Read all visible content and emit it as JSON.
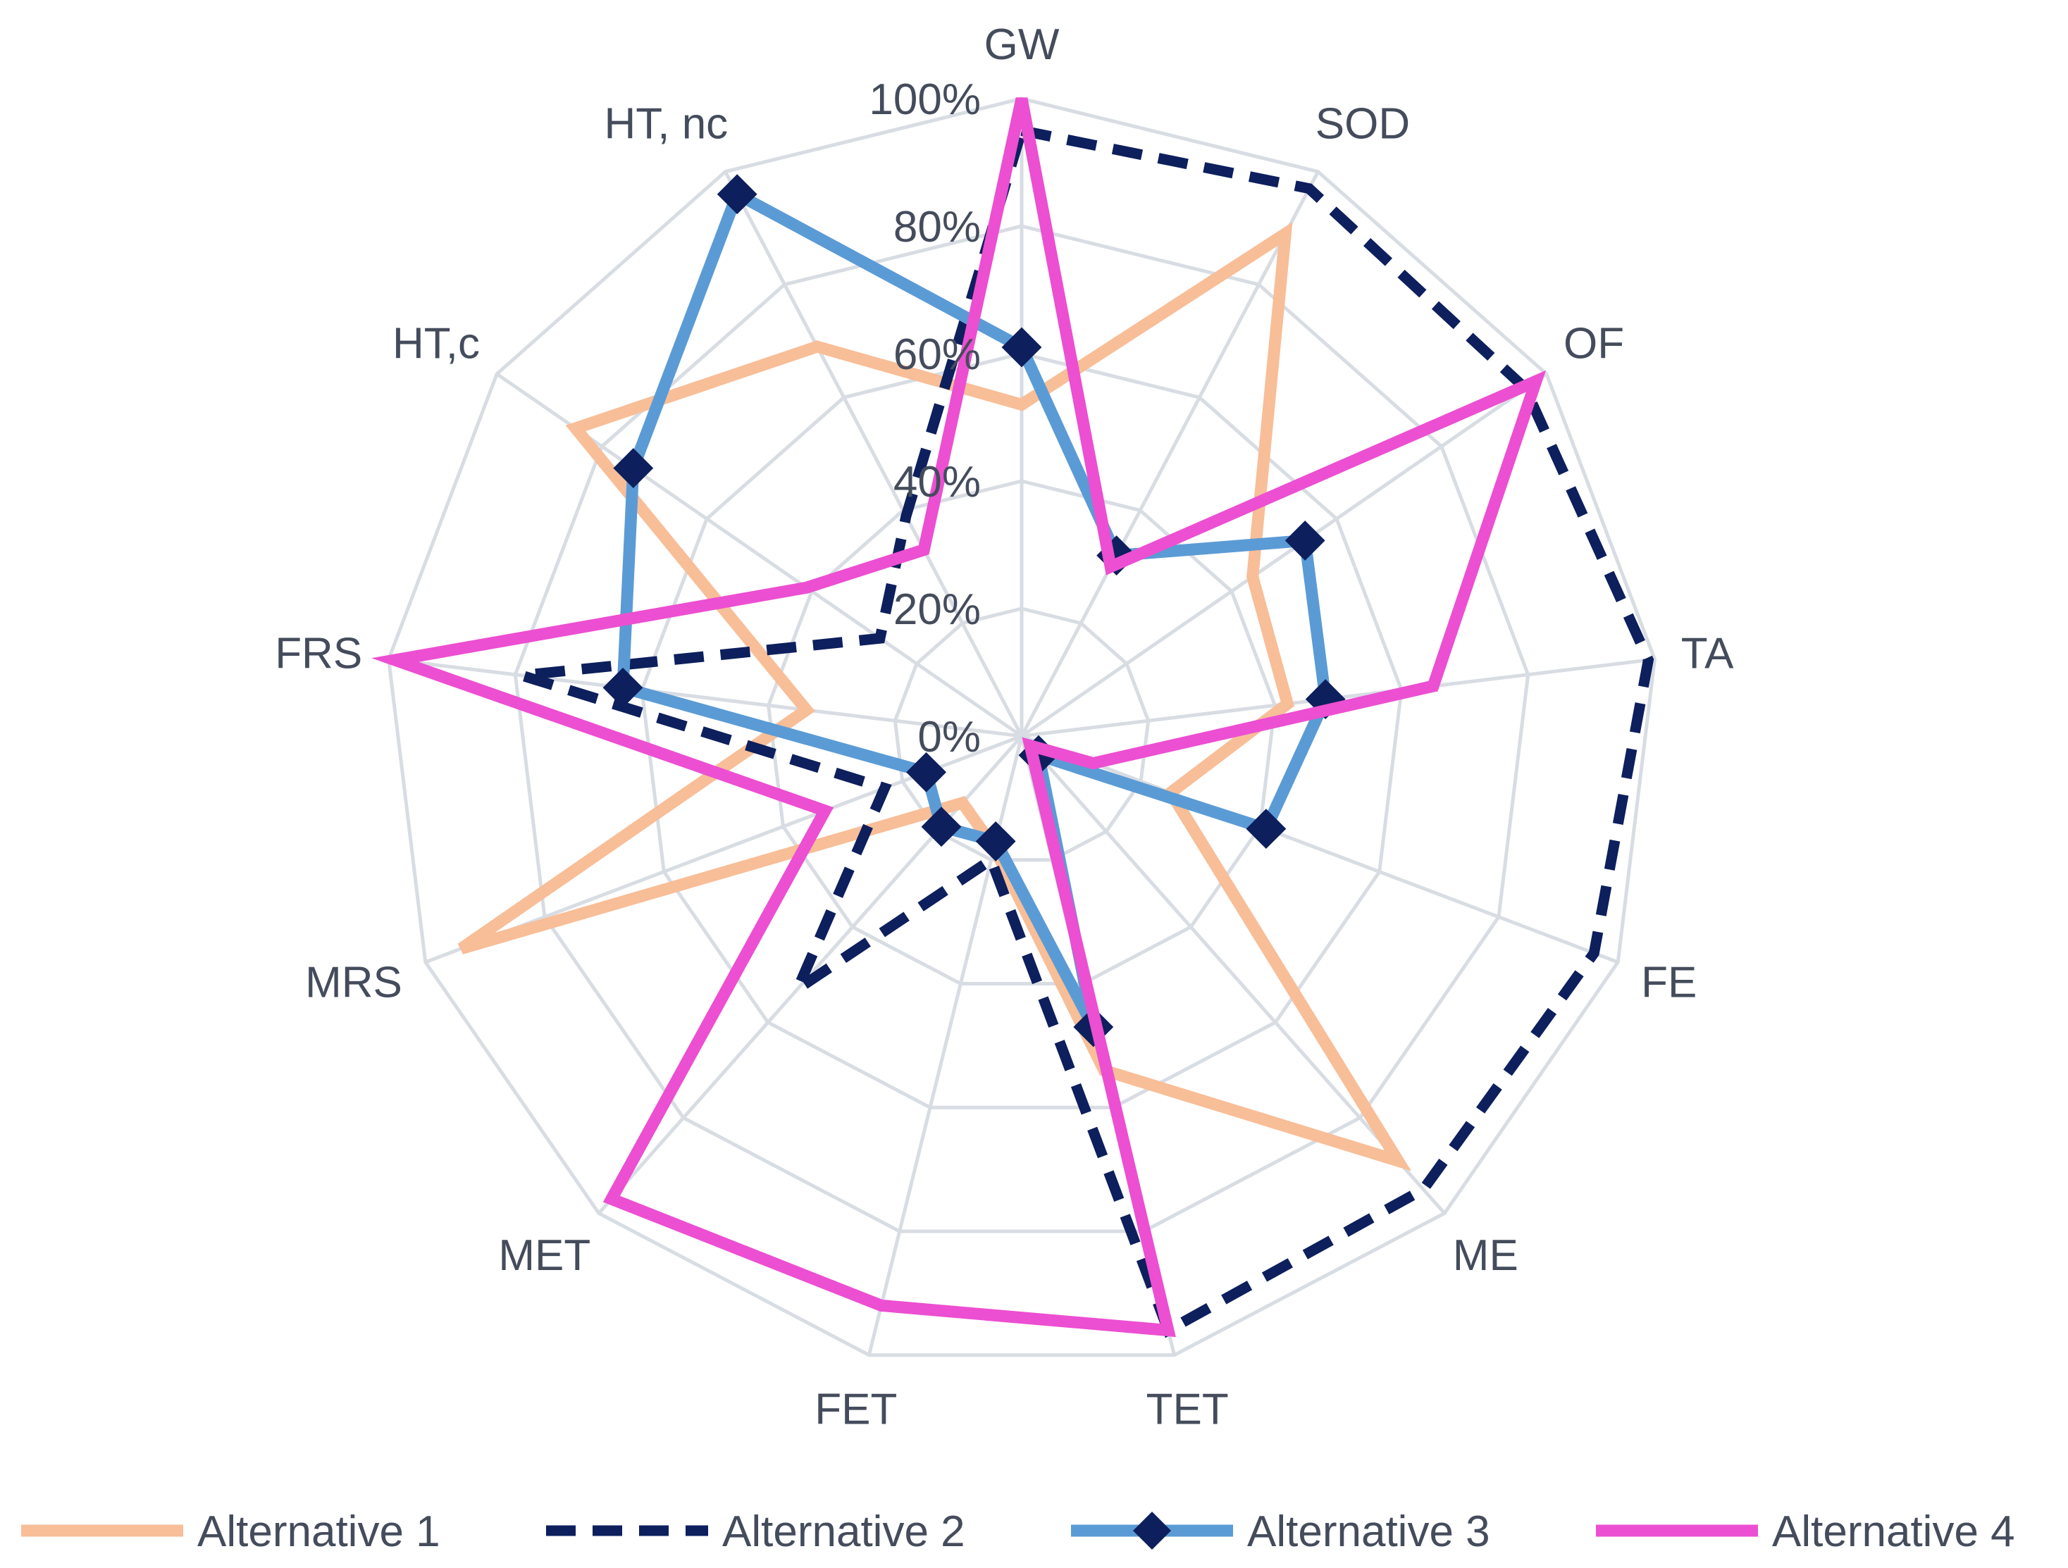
{
  "chart_data": {
    "type": "radar",
    "categories": [
      "GW",
      "SOD",
      "OF",
      "TA",
      "FE",
      "ME",
      "TET",
      "FET",
      "MET",
      "MRS",
      "FRS",
      "HT,c",
      "HT, nc"
    ],
    "axis_tick_labels": [
      "0%",
      "20%",
      "40%",
      "60%",
      "80%",
      "100%"
    ],
    "rmax": 100,
    "grid": true,
    "legend_position": "bottom",
    "series": [
      {
        "name": "Alternative 1",
        "color": "#F7BE98",
        "style": "solid",
        "marker": "none",
        "values": [
          52,
          89,
          44,
          42,
          25,
          89,
          54,
          18,
          14,
          94,
          34,
          85,
          69
        ]
      },
      {
        "name": "Alternative 2",
        "color": "#0D1F5C",
        "style": "dashed",
        "marker": "none",
        "values": [
          95,
          97,
          96,
          99,
          96,
          95,
          96,
          20,
          53,
          23,
          79,
          27,
          39
        ]
      },
      {
        "name": "Alternative 3",
        "color": "#5B9BD5",
        "style": "solid",
        "marker": "diamond",
        "values": [
          61,
          32,
          54,
          48,
          41,
          4,
          47,
          17,
          19,
          16,
          63,
          74,
          96
        ]
      },
      {
        "name": "Alternative 4",
        "color": "#EC4FD1",
        "style": "solid",
        "marker": "none",
        "values": [
          100,
          30,
          98,
          65,
          12,
          2,
          96,
          92,
          97,
          33,
          99,
          41,
          33
        ]
      }
    ]
  }
}
